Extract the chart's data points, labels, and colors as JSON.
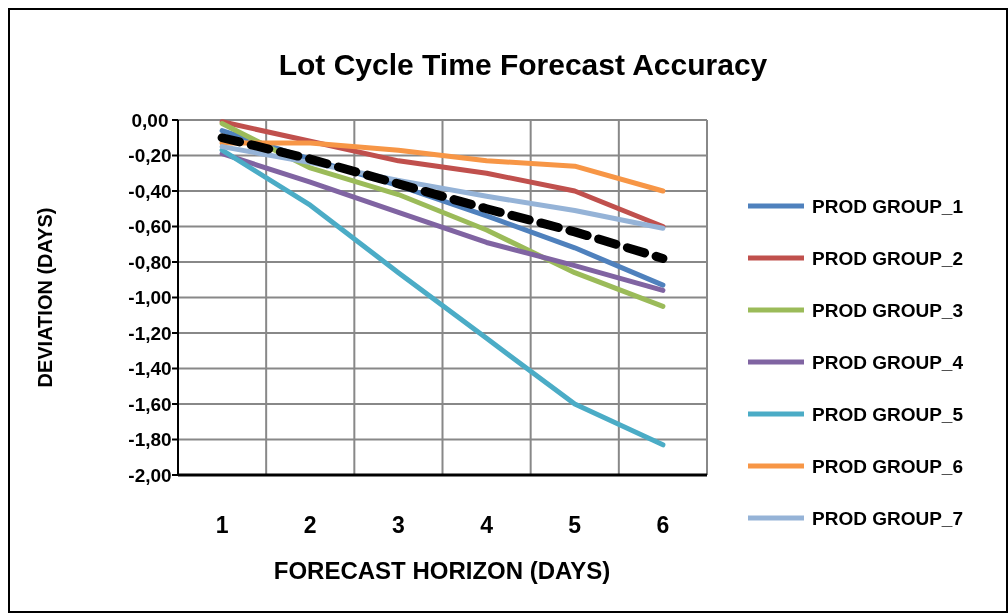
{
  "chart_data": {
    "type": "line",
    "title": "Lot Cycle Time Forecast Accuracy",
    "xlabel": "FORECAST HORIZON (DAYS)",
    "ylabel": "DEVIATION (DAYS)",
    "categories": [
      "1",
      "2",
      "3",
      "4",
      "5",
      "6"
    ],
    "series": [
      {
        "name": "PROD GROUP_1",
        "color": "#4f81bd",
        "values": [
          -0.06,
          -0.22,
          -0.37,
          -0.54,
          -0.72,
          -0.93
        ]
      },
      {
        "name": "PROD GROUP_2",
        "color": "#c0504d",
        "values": [
          -0.01,
          -0.12,
          -0.23,
          -0.3,
          -0.4,
          -0.6
        ]
      },
      {
        "name": "PROD GROUP_3",
        "color": "#9bbb59",
        "values": [
          -0.02,
          -0.27,
          -0.42,
          -0.62,
          -0.86,
          -1.05
        ]
      },
      {
        "name": "PROD GROUP_4",
        "color": "#8064a2",
        "values": [
          -0.19,
          -0.35,
          -0.52,
          -0.69,
          -0.82,
          -0.96
        ]
      },
      {
        "name": "PROD GROUP_5",
        "color": "#4bacc6",
        "values": [
          -0.17,
          -0.48,
          -0.86,
          -1.23,
          -1.6,
          -1.83
        ]
      },
      {
        "name": "PROD GROUP_6",
        "color": "#f79646",
        "values": [
          -0.13,
          -0.13,
          -0.17,
          -0.23,
          -0.26,
          -0.4
        ]
      },
      {
        "name": "PROD GROUP_7",
        "color": "#95b3d7",
        "values": [
          -0.15,
          -0.24,
          -0.34,
          -0.43,
          -0.51,
          -0.61
        ]
      },
      {
        "color": "#000000",
        "line_style": "dashed",
        "values": [
          -0.1,
          -0.22,
          -0.36,
          -0.5,
          -0.63,
          -0.78
        ]
      }
    ],
    "ylim": [
      -2,
      0
    ],
    "yticks": [
      {
        "value": 0,
        "label": "0,00"
      },
      {
        "value": -0.2,
        "label": "-0,20"
      },
      {
        "value": -0.4,
        "label": "-0,40"
      },
      {
        "value": -0.6,
        "label": "-0,60"
      },
      {
        "value": -0.8,
        "label": "-0,80"
      },
      {
        "value": -1,
        "label": "-1,00"
      },
      {
        "value": -1.2,
        "label": "-1,20"
      },
      {
        "value": -1.4,
        "label": "-1,40"
      },
      {
        "value": -1.6,
        "label": "-1,60"
      },
      {
        "value": -1.8,
        "label": "-1,80"
      },
      {
        "value": -2,
        "label": "-2,00"
      }
    ],
    "grid": true,
    "legend": "right",
    "marker": "none",
    "line_style": "solid"
  }
}
